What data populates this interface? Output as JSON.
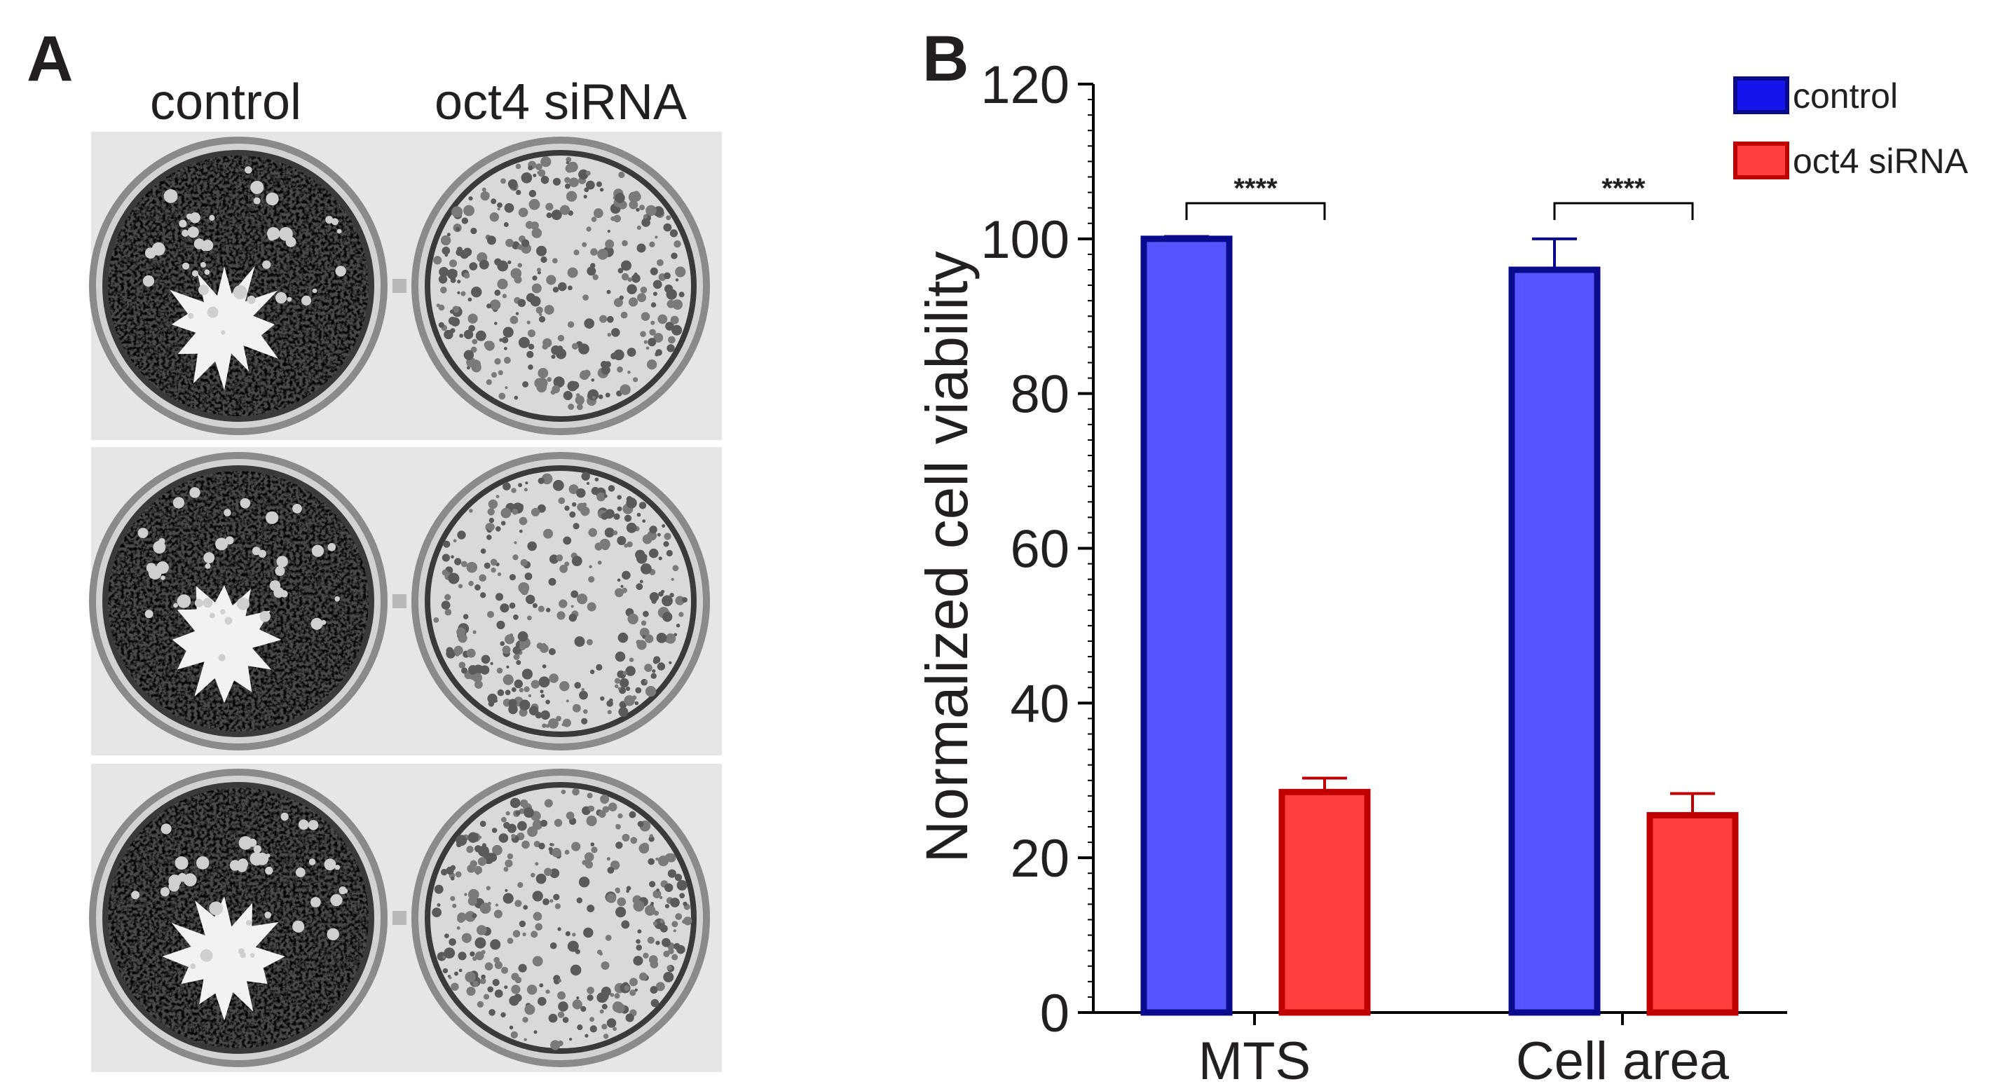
{
  "panel_a": {
    "letter": "A",
    "columns": [
      "control",
      "oct4 siRNA"
    ],
    "rows": 3
  },
  "panel_b": {
    "letter": "B"
  },
  "chart_data": {
    "type": "bar",
    "title": "",
    "xlabel": "",
    "ylabel": "Normalized cell viability",
    "categories": [
      "MTS",
      "Cell area"
    ],
    "ylim": [
      0,
      120
    ],
    "yticks": [
      "0",
      "20",
      "40",
      "60",
      "80",
      "100",
      "120"
    ],
    "legend": "top-right",
    "series": [
      {
        "name": "control",
        "values": [
          100,
          96
        ],
        "errors": [
          0.3,
          4
        ],
        "fill": "#5555ff",
        "stroke": "#0a0a8c",
        "legend_fill": "#1414ee"
      },
      {
        "name": "oct4 siRNA",
        "values": [
          28.5,
          25.5
        ],
        "errors": [
          1.8,
          2.8
        ],
        "fill": "#ff4040",
        "stroke": "#c00000",
        "legend_fill": "#ff4040"
      }
    ],
    "significance": [
      "****",
      "****"
    ]
  }
}
